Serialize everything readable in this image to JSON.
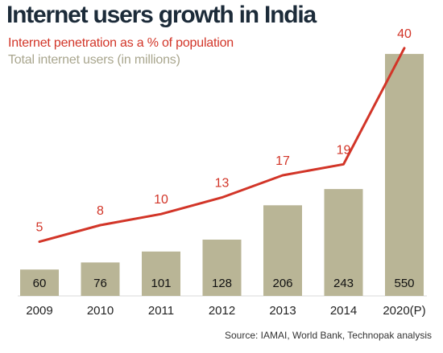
{
  "colors": {
    "bar": "#b9b596",
    "line": "#d23528",
    "title": "#1c2b39",
    "legend_bar_text": "#a9a68e"
  },
  "chart_data": {
    "type": "bar",
    "title": "Internet users growth in India",
    "categories": [
      "2009",
      "2010",
      "2011",
      "2012",
      "2013",
      "2014",
      "2020(P)"
    ],
    "series": [
      {
        "name": "Total internet users (in millions)",
        "type": "bar",
        "values": [
          60,
          76,
          101,
          128,
          206,
          243,
          550
        ]
      },
      {
        "name": "Internet penetration as a % of population",
        "type": "line",
        "values": [
          5,
          8,
          10,
          13,
          17,
          19,
          40
        ]
      }
    ],
    "source": "Source: IAMAI, World Bank, Technopak analysis"
  }
}
